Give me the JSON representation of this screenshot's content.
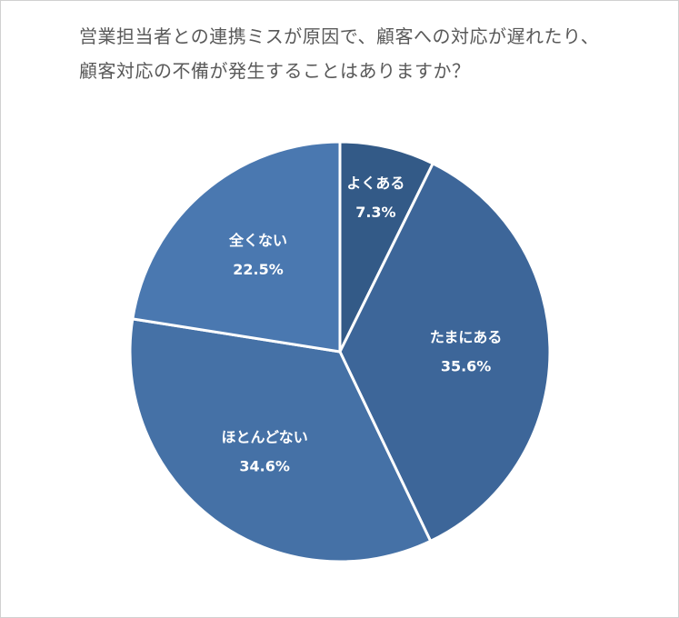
{
  "chart_data": {
    "type": "pie",
    "title": "営業担当者との連携ミスが原因で、顧客への対応が遅れたり、顧客対応の不備が発生することはありますか？",
    "categories": [
      "よくある",
      "たまにある",
      "ほとんどない",
      "全くない"
    ],
    "values": [
      7.3,
      35.6,
      34.6,
      22.5
    ],
    "value_labels": [
      "7.3%",
      "35.6%",
      "34.6%",
      "22.5%"
    ],
    "colors": [
      "#335a87",
      "#3d6699",
      "#4571a6",
      "#4a78b0"
    ]
  }
}
